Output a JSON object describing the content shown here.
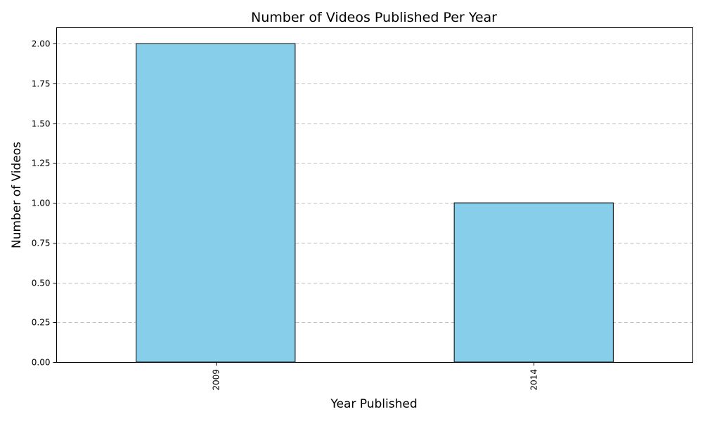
{
  "chart_data": {
    "type": "bar",
    "title": "Number of Videos Published Per Year",
    "xlabel": "Year Published",
    "ylabel": "Number of Videos",
    "categories": [
      "2009",
      "2014"
    ],
    "values": [
      2,
      1
    ],
    "ylim": [
      0,
      2.1
    ],
    "yticks": [
      "0.00",
      "0.25",
      "0.50",
      "0.75",
      "1.00",
      "1.25",
      "1.50",
      "1.75",
      "2.00"
    ],
    "grid": "y-axis dashed",
    "bar_color": "#87CEEB",
    "edge_color": "#000000"
  }
}
